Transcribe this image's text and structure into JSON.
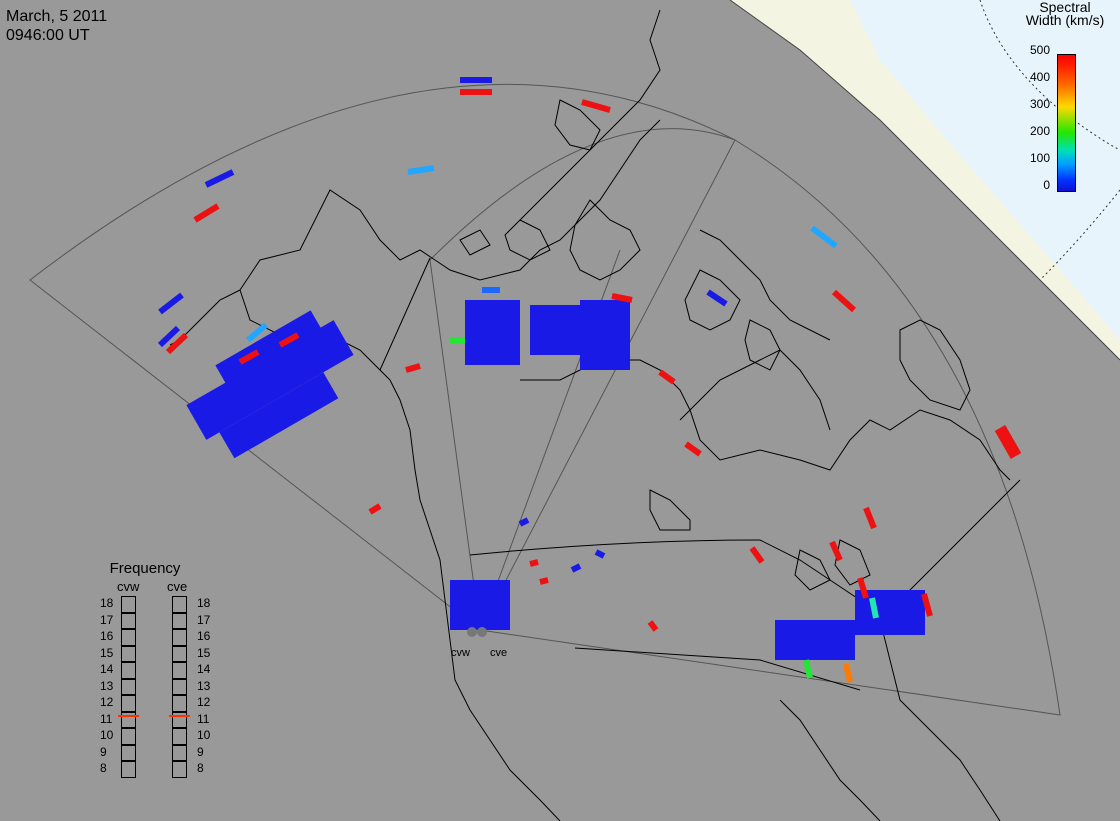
{
  "header": {
    "date": "March, 5 2011",
    "time": "0946:00 UT"
  },
  "colorbar": {
    "title_line1": "Spectral",
    "title_line2": "Width (km/s)",
    "ticks": [
      "500",
      "400",
      "300",
      "200",
      "100",
      "0"
    ],
    "range": [
      0,
      500
    ],
    "colors": [
      "#1010d0",
      "#0033ff",
      "#00a0ff",
      "#00e0b4",
      "#22e600",
      "#ffd800",
      "#ff6a00",
      "#ff0000"
    ]
  },
  "frequency": {
    "title": "Frequency",
    "radar_left": "cvw",
    "radar_right": "cve",
    "ticks": [
      "18",
      "17",
      "16",
      "15",
      "14",
      "13",
      "12",
      "11",
      "10",
      "9",
      "8"
    ],
    "cvw_value_mhz": 10.8,
    "cve_value_mhz": 10.8,
    "marker_color": "#ff3300"
  },
  "stations": [
    {
      "name": "cvw"
    },
    {
      "name": "cve"
    }
  ],
  "colors": {
    "land_background": "#999999",
    "night_region": "#fafaf0",
    "polar_region": "#e8f4ff",
    "coastline": "#000000",
    "fov_outline": "#555555"
  }
}
